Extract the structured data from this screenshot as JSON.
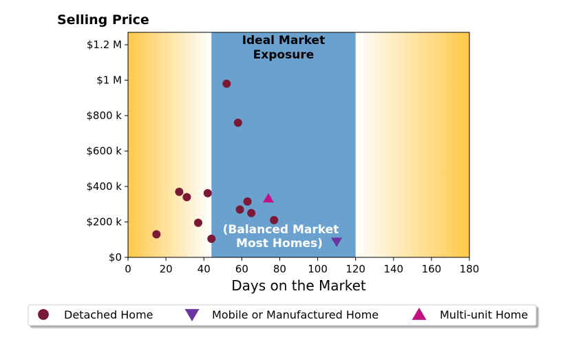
{
  "chart_data": {
    "type": "scatter",
    "title": "Selling Price",
    "xlabel": "Days on the Market",
    "ylabel": "",
    "xlim": [
      0,
      180
    ],
    "ylim": [
      0,
      1270000
    ],
    "x_ticks": [
      {
        "value": 0,
        "label": "0"
      },
      {
        "value": 20,
        "label": "20"
      },
      {
        "value": 40,
        "label": "40"
      },
      {
        "value": 60,
        "label": "60"
      },
      {
        "value": 80,
        "label": "80"
      },
      {
        "value": 100,
        "label": "100"
      },
      {
        "value": 120,
        "label": "120"
      },
      {
        "value": 140,
        "label": "140"
      },
      {
        "value": 160,
        "label": "160"
      },
      {
        "value": 180,
        "label": "180"
      }
    ],
    "y_ticks": [
      {
        "value": 0,
        "label": "$0"
      },
      {
        "value": 200000,
        "label": "$200 k"
      },
      {
        "value": 400000,
        "label": "$400 k"
      },
      {
        "value": 600000,
        "label": "$600 k"
      },
      {
        "value": 800000,
        "label": "$800 k"
      },
      {
        "value": 1000000,
        "label": "$1 M"
      },
      {
        "value": 1200000,
        "label": "$1.2 M"
      }
    ],
    "grid": false,
    "legend_position": "bottom",
    "zones": [
      {
        "name": "ideal",
        "x_start": 44,
        "x_end": 120,
        "color": "#6aa1cf",
        "label_lines": [
          "Ideal Market",
          "Exposure"
        ],
        "label_color": "#000000"
      }
    ],
    "zone_note": {
      "lines": [
        "(Balanced Market",
        "Most Homes)"
      ],
      "color": "#ffffff"
    },
    "gradient_color": "#ffc94a",
    "series": [
      {
        "name": "Detached Home",
        "marker": "circle",
        "color": "#7b1a36",
        "points": [
          {
            "x": 15,
            "y": 130000
          },
          {
            "x": 27,
            "y": 370000
          },
          {
            "x": 31,
            "y": 340000
          },
          {
            "x": 37,
            "y": 195000
          },
          {
            "x": 42,
            "y": 362000
          },
          {
            "x": 44,
            "y": 105000
          },
          {
            "x": 52,
            "y": 980000
          },
          {
            "x": 58,
            "y": 760000
          },
          {
            "x": 59,
            "y": 270000
          },
          {
            "x": 63,
            "y": 315000
          },
          {
            "x": 65,
            "y": 250000
          },
          {
            "x": 77,
            "y": 210000
          }
        ]
      },
      {
        "name": "Mobile or Manufactured Home",
        "marker": "triangle-down",
        "color": "#6a35a0",
        "points": [
          {
            "x": 110,
            "y": 88000
          }
        ]
      },
      {
        "name": "Multi-unit Home",
        "marker": "triangle-up",
        "color": "#c2127f",
        "points": [
          {
            "x": 74,
            "y": 333000
          }
        ]
      }
    ]
  }
}
